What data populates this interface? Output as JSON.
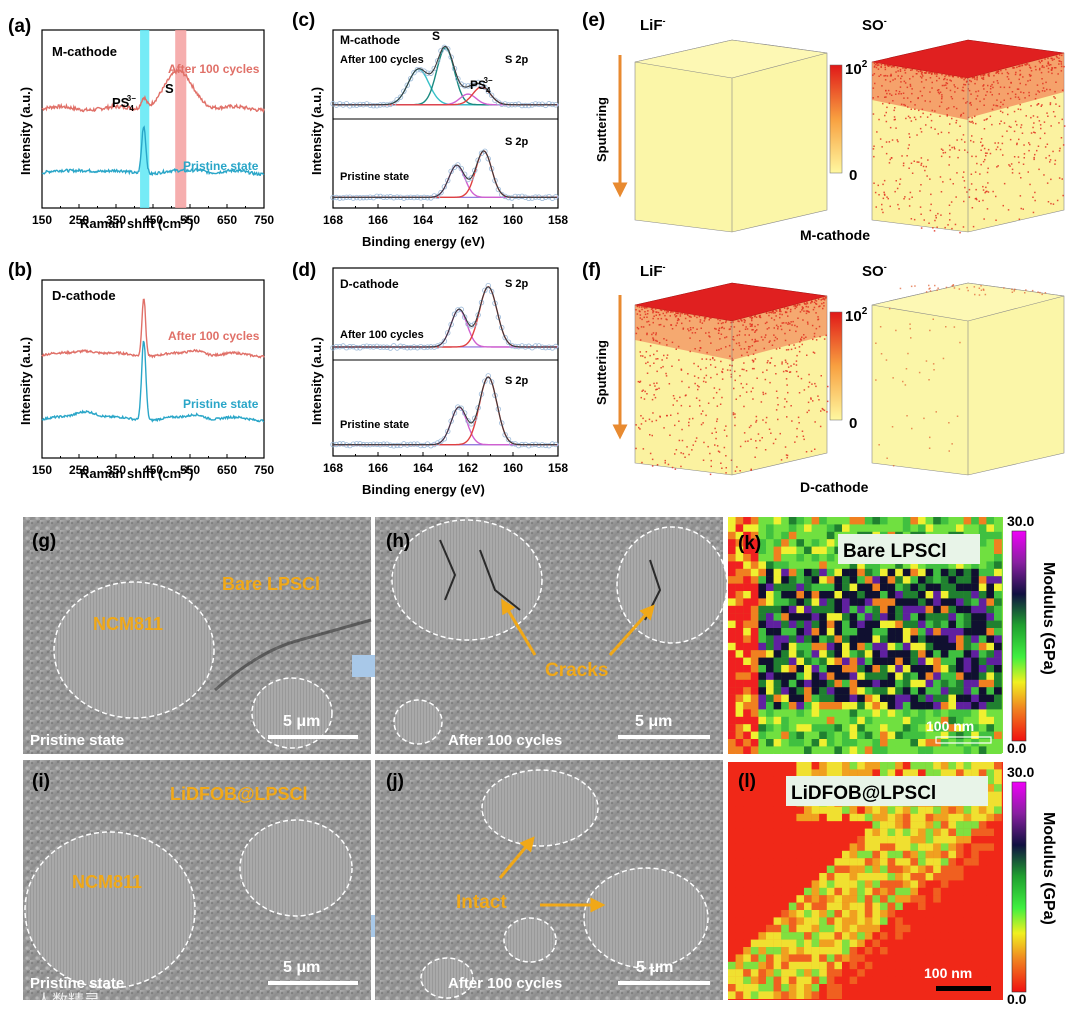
{
  "colors": {
    "after": "#e07068",
    "pristine": "#2aa6c8",
    "fit_cyan": "#36c0c8",
    "fit_pink": "#d060d0",
    "fit_red": "#e04040",
    "fit_teal": "#1a8a80",
    "highlight_cyan": "#5ee8f4",
    "highlight_pink": "#f4a0a0",
    "annotation_orange": "#f0a818",
    "arrow_orange": "#e88a30",
    "arrow_blue": "#a8c8e8",
    "cube_yellow": "#fbf6a8",
    "cube_red": "#e02020",
    "sem_bg": "#9a9a9a"
  },
  "panels": {
    "a": {
      "label": "(a)",
      "sample": "M-cathode",
      "after": "After 100 cycles",
      "pristine": "Pristine state",
      "peak_ps": "PS",
      "peak_ps_sub": "4",
      "peak_ps_sup": "3−",
      "peak_s": "S"
    },
    "b": {
      "label": "(b)",
      "sample": "D-cathode",
      "after": "After 100 cycles",
      "pristine": "Pristine state"
    },
    "c": {
      "label": "(c)",
      "sample": "M-cathode",
      "after": "After 100 cycles",
      "pristine": "Pristine state",
      "peak_s": "S",
      "peak_ps": "PS",
      "peak_ps_sub": "4",
      "peak_ps_sup": "3−",
      "orbital_top": "S 2p",
      "orbital_bottom": "S 2p"
    },
    "d": {
      "label": "(d)",
      "sample": "D-cathode",
      "after": "After 100 cycles",
      "pristine": "Pristine state",
      "orbital_top": "S 2p",
      "orbital_bottom": "S 2p"
    },
    "e": {
      "label": "(e)",
      "ion1": "LiF",
      "ion2": "SO",
      "ion_sup": "-",
      "direction": "Sputtering",
      "scale_max": "10",
      "scale_max_exp": "2",
      "scale_min": "0",
      "sample": "M-cathode"
    },
    "f": {
      "label": "(f)",
      "ion1": "LiF",
      "ion2": "SO",
      "ion_sup": "-",
      "direction": "Sputtering",
      "scale_max": "10",
      "scale_max_exp": "2",
      "scale_min": "0",
      "sample": "D-cathode"
    },
    "g": {
      "label": "(g)",
      "title": "Bare LPSCl",
      "particle": "NCM811",
      "state": "Pristine state",
      "scale": "5 μm"
    },
    "h": {
      "label": "(h)",
      "annotation": "Cracks",
      "state": "After 100 cycles",
      "scale": "5 μm"
    },
    "i": {
      "label": "(i)",
      "title": "LiDFOB@LPSCl",
      "particle": "NCM811",
      "state": "Pristine state",
      "scale": "5 μm"
    },
    "j": {
      "label": "(j)",
      "annotation": "Intact",
      "state": "After 100 cycles",
      "scale": "5 μm"
    },
    "k": {
      "label": "(k)",
      "title": "Bare LPSCl",
      "scale": "100 nm",
      "cbar_max": "30.0",
      "cbar_min": "0.0",
      "cbar_label": "Modulus (GPa)"
    },
    "l": {
      "label": "(l)",
      "title": "LiDFOB@LPSCl",
      "scale": "100 nm",
      "cbar_max": "30.0",
      "cbar_min": "0.0",
      "cbar_label": "Modulus (GPa)"
    }
  },
  "watermark": "人数精灵",
  "chart_data": [
    {
      "id": "a",
      "type": "line",
      "title": "M-cathode",
      "xlabel": "Raman shift (cm⁻¹)",
      "ylabel": "Intensity (a.u.)",
      "xlim": [
        150,
        750
      ],
      "ylim": [
        0,
        1
      ],
      "xticks": [
        150,
        250,
        350,
        450,
        550,
        650,
        750
      ],
      "highlights": [
        {
          "x": [
            415,
            440
          ],
          "color": "cyan"
        },
        {
          "x": [
            510,
            540
          ],
          "color": "pink"
        }
      ],
      "series": [
        {
          "name": "After 100 cycles",
          "base": 0.56,
          "wavy": 0.01,
          "peaks": [
            [
              425,
              0.06,
              10
            ],
            [
              520,
              0.2,
              55
            ]
          ]
        },
        {
          "name": "Pristine state",
          "base": 0.2,
          "wavy": 0.008,
          "peaks": [
            [
              425,
              0.27,
              8
            ],
            [
              270,
              0.02,
              40
            ],
            [
              575,
              0.02,
              30
            ]
          ]
        }
      ]
    },
    {
      "id": "b",
      "type": "line",
      "title": "D-cathode",
      "xlabel": "Raman shift (cm⁻¹)",
      "ylabel": "Intensity (a.u.)",
      "xlim": [
        150,
        750
      ],
      "ylim": [
        0,
        1
      ],
      "xticks": [
        150,
        250,
        350,
        450,
        550,
        650,
        750
      ],
      "series": [
        {
          "name": "After 100 cycles",
          "base": 0.58,
          "wavy": 0.006,
          "peaks": [
            [
              425,
              0.33,
              7
            ],
            [
              270,
              0.03,
              40
            ],
            [
              570,
              0.03,
              30
            ]
          ]
        },
        {
          "name": "Pristine state",
          "base": 0.22,
          "wavy": 0.006,
          "peaks": [
            [
              425,
              0.45,
              8
            ],
            [
              270,
              0.05,
              40
            ],
            [
              570,
              0.03,
              30
            ]
          ]
        }
      ]
    },
    {
      "id": "c",
      "type": "line",
      "title": "M-cathode",
      "xlabel": "Binding energy (eV)",
      "ylabel": "Intensity (a.u.)",
      "xlim": [
        168,
        158
      ],
      "ylim": [
        0,
        1
      ],
      "xticks": [
        168,
        166,
        164,
        162,
        160,
        158
      ],
      "components": [
        {
          "group": "after",
          "baseline": 0.58,
          "peaks": [
            [
              164.2,
              0.2,
              0.65,
              "cyan"
            ],
            [
              163.0,
              0.32,
              0.55,
              "teal"
            ],
            [
              162.0,
              0.06,
              0.5,
              "pink"
            ],
            [
              161.4,
              0.1,
              0.55,
              "red"
            ]
          ]
        },
        {
          "group": "pristine",
          "baseline": 0.06,
          "peaks": [
            [
              162.5,
              0.18,
              0.5,
              "pink"
            ],
            [
              161.3,
              0.26,
              0.5,
              "red"
            ]
          ]
        }
      ]
    },
    {
      "id": "d",
      "type": "line",
      "title": "D-cathode",
      "xlabel": "Binding energy (eV)",
      "ylabel": "Intensity (a.u.)",
      "xlim": [
        168,
        158
      ],
      "ylim": [
        0,
        1
      ],
      "xticks": [
        168,
        166,
        164,
        162,
        160,
        158
      ],
      "components": [
        {
          "group": "after",
          "baseline": 0.58,
          "peaks": [
            [
              162.4,
              0.2,
              0.5,
              "pink"
            ],
            [
              161.1,
              0.32,
              0.55,
              "red"
            ]
          ]
        },
        {
          "group": "pristine",
          "baseline": 0.06,
          "peaks": [
            [
              162.4,
              0.2,
              0.5,
              "pink"
            ],
            [
              161.1,
              0.36,
              0.55,
              "red"
            ]
          ]
        }
      ]
    }
  ]
}
